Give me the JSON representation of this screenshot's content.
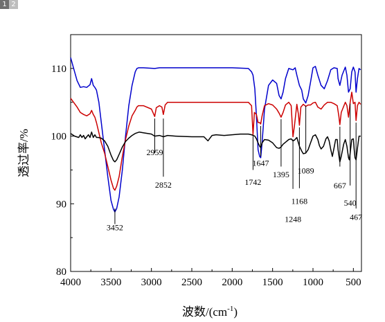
{
  "tabs": [
    {
      "label": "1",
      "active": true
    },
    {
      "label": "2",
      "active": false
    }
  ],
  "chart_data": {
    "type": "line",
    "xlabel": "波数/(cm-1)",
    "xlabel_parts": {
      "base": "波数/(cm",
      "sup": "-1",
      "close": ")"
    },
    "ylabel": "透过率/%",
    "xlim": [
      4000,
      400
    ],
    "ylim": [
      80,
      115
    ],
    "x_ticks": [
      4000,
      3500,
      3000,
      2500,
      2000,
      1500,
      1000,
      500
    ],
    "x_tick_labels": [
      "4000",
      "3500",
      "3000",
      "2500",
      "2000",
      "1500",
      "1000",
      "500"
    ],
    "y_ticks": [
      80,
      90,
      100,
      110
    ],
    "y_tick_labels": [
      "80",
      "90",
      "100",
      "110"
    ],
    "grid": false,
    "legend": false,
    "series": [
      {
        "color": "#0000cc",
        "x": [
          4000,
          3920,
          3880,
          3840,
          3800,
          3760,
          3740,
          3720,
          3700,
          3680,
          3650,
          3620,
          3580,
          3540,
          3500,
          3470,
          3452,
          3430,
          3400,
          3360,
          3320,
          3280,
          3240,
          3200,
          3180,
          3160,
          3100,
          2959,
          2900,
          2852,
          2800,
          2500,
          2000,
          1800,
          1760,
          1742,
          1720,
          1700,
          1680,
          1660,
          1647,
          1630,
          1600,
          1550,
          1500,
          1450,
          1420,
          1395,
          1370,
          1340,
          1300,
          1248,
          1220,
          1200,
          1168,
          1140,
          1120,
          1089,
          1060,
          1030,
          1000,
          970,
          940,
          900,
          860,
          820,
          780,
          740,
          700,
          690,
          667,
          640,
          600,
          580,
          560,
          540,
          520,
          500,
          480,
          467,
          450,
          430,
          410
        ],
        "y": [
          111.6,
          108.2,
          107.2,
          107.3,
          107.2,
          107.6,
          108.5,
          107.5,
          107.2,
          106.8,
          105.0,
          102.0,
          98.0,
          94.0,
          90.5,
          89.2,
          88.8,
          89.3,
          91.0,
          95.0,
          100.0,
          104.5,
          107.5,
          109.5,
          110.0,
          110.1,
          110.1,
          110.0,
          110.1,
          110.1,
          110.1,
          110.1,
          110.1,
          110.0,
          109.5,
          109.0,
          107.0,
          103.0,
          98.0,
          97.0,
          96.8,
          99.0,
          104.0,
          107.5,
          108.3,
          107.8,
          106.0,
          105.5,
          106.5,
          108.5,
          110.0,
          109.8,
          110.1,
          109.0,
          107.5,
          106.8,
          105.5,
          104.9,
          106.0,
          108.0,
          110.1,
          110.3,
          109.0,
          107.5,
          107.0,
          108.2,
          109.8,
          110.1,
          110.0,
          108.5,
          107.5,
          109.0,
          110.2,
          109.0,
          106.5,
          107.0,
          109.5,
          110.2,
          109.5,
          106.5,
          108.5,
          110.0,
          109.8
        ]
      },
      {
        "color": "#cc0000",
        "x": [
          4000,
          3920,
          3880,
          3840,
          3800,
          3760,
          3740,
          3720,
          3700,
          3680,
          3650,
          3620,
          3580,
          3540,
          3500,
          3470,
          3452,
          3430,
          3400,
          3360,
          3320,
          3280,
          3240,
          3200,
          3180,
          3160,
          3100,
          3000,
          2959,
          2940,
          2900,
          2870,
          2852,
          2830,
          2800,
          2500,
          2000,
          1800,
          1760,
          1742,
          1725,
          1700,
          1680,
          1660,
          1647,
          1630,
          1600,
          1550,
          1500,
          1450,
          1420,
          1395,
          1370,
          1340,
          1300,
          1270,
          1248,
          1230,
          1200,
          1180,
          1168,
          1150,
          1120,
          1089,
          1060,
          1030,
          1000,
          970,
          940,
          900,
          860,
          820,
          780,
          740,
          700,
          680,
          667,
          650,
          600,
          580,
          560,
          540,
          520,
          500,
          480,
          467,
          450,
          430,
          410
        ],
        "y": [
          105.6,
          104.3,
          103.5,
          103.2,
          103.0,
          103.3,
          103.8,
          103.2,
          102.8,
          102.0,
          100.5,
          99.0,
          97.5,
          95.5,
          93.5,
          92.3,
          92.0,
          92.6,
          94.0,
          97.0,
          99.5,
          101.5,
          103.0,
          103.8,
          104.3,
          104.5,
          104.5,
          104.0,
          102.9,
          104.2,
          104.5,
          104.3,
          103.2,
          104.6,
          105.0,
          105.0,
          105.0,
          105.0,
          104.5,
          100.2,
          103.5,
          103.2,
          102.0,
          102.0,
          101.8,
          103.0,
          104.5,
          104.8,
          104.6,
          104.0,
          103.4,
          102.8,
          103.5,
          104.6,
          105.0,
          104.5,
          99.9,
          101.5,
          104.7,
          103.2,
          101.6,
          104.3,
          104.7,
          104.4,
          104.6,
          104.6,
          104.9,
          105.0,
          104.3,
          104.0,
          104.6,
          105.0,
          105.0,
          104.8,
          104.5,
          103.0,
          101.7,
          103.5,
          105.0,
          104.5,
          102.8,
          105.0,
          106.5,
          104.8,
          105.0,
          102.3,
          104.5,
          105.0,
          104.7
        ]
      },
      {
        "color": "#000000",
        "x": [
          4000,
          3950,
          3900,
          3880,
          3860,
          3840,
          3820,
          3800,
          3780,
          3760,
          3740,
          3720,
          3700,
          3680,
          3660,
          3620,
          3580,
          3540,
          3500,
          3470,
          3452,
          3430,
          3400,
          3360,
          3320,
          3280,
          3240,
          3200,
          3150,
          3100,
          3000,
          2959,
          2900,
          2852,
          2800,
          2700,
          2500,
          2350,
          2300,
          2250,
          2200,
          2100,
          2000,
          1900,
          1800,
          1760,
          1742,
          1720,
          1700,
          1680,
          1660,
          1647,
          1630,
          1600,
          1550,
          1500,
          1450,
          1420,
          1395,
          1370,
          1340,
          1300,
          1270,
          1248,
          1230,
          1200,
          1168,
          1140,
          1120,
          1089,
          1060,
          1030,
          1000,
          970,
          940,
          920,
          900,
          870,
          840,
          820,
          800,
          780,
          760,
          740,
          720,
          700,
          690,
          680,
          667,
          650,
          620,
          600,
          580,
          560,
          550,
          540,
          520,
          500,
          490,
          480,
          467,
          450,
          430,
          410
        ],
        "y": [
          100.4,
          100.0,
          99.8,
          100.2,
          99.8,
          100.1,
          99.6,
          99.9,
          100.2,
          99.8,
          100.6,
          99.8,
          100.2,
          99.8,
          99.8,
          99.7,
          99.3,
          98.5,
          97.2,
          96.4,
          96.2,
          96.5,
          97.3,
          98.4,
          99.2,
          99.7,
          100.1,
          100.4,
          100.6,
          100.5,
          100.3,
          100.0,
          100.1,
          99.9,
          100.1,
          100.0,
          99.9,
          99.9,
          99.3,
          100.1,
          100.2,
          100.1,
          100.2,
          100.3,
          100.3,
          100.2,
          100.1,
          100.0,
          99.6,
          99.0,
          98.5,
          98.3,
          99.0,
          99.5,
          99.4,
          99.0,
          98.3,
          98.2,
          98.4,
          98.8,
          99.1,
          99.5,
          99.6,
          99.3,
          99.4,
          99.8,
          98.5,
          97.8,
          97.4,
          97.5,
          98.0,
          99.0,
          100.0,
          100.2,
          99.5,
          98.6,
          98.1,
          98.5,
          99.6,
          99.9,
          99.3,
          98.0,
          97.0,
          98.2,
          99.5,
          99.5,
          98.0,
          97.2,
          96.2,
          97.0,
          98.8,
          99.5,
          98.5,
          96.8,
          96.5,
          97.5,
          99.5,
          99.6,
          98.0,
          96.8,
          96.5,
          98.2,
          100.0,
          100.0
        ]
      }
    ],
    "annotations": [
      {
        "label": "3452",
        "wn": 3452,
        "mark": [
          89.3,
          87.0
        ],
        "text_y": 86.1
      },
      {
        "label": "2959",
        "wn": 2959,
        "mark": [
          102.6,
          97.5
        ],
        "text_y": 97.2
      },
      {
        "label": "2852",
        "wn": 2852,
        "mark": [
          102.6,
          94.0
        ],
        "text_y": 92.4
      },
      {
        "label": "1742",
        "wn": 1742,
        "mark": [
          100.0,
          95.0
        ],
        "text_y": 92.8
      },
      {
        "label": "1647",
        "wn": 1647,
        "mark": [
          101.5,
          97.0
        ],
        "text_y": 95.6
      },
      {
        "label": "1395",
        "wn": 1395,
        "mark": [
          102.5,
          95.5
        ],
        "text_y": 93.9
      },
      {
        "label": "1089",
        "wn": 1089,
        "mark": [
          104.5,
          97.5
        ],
        "text_y": 94.5
      },
      {
        "label": "1248",
        "wn": 1248,
        "mark": [
          99.5,
          92.2
        ],
        "text_y": 87.3
      },
      {
        "label": "1168",
        "wn": 1168,
        "mark": [
          101.3,
          92.3
        ],
        "text_y": 90.0
      },
      {
        "label": "667",
        "wn": 667,
        "mark": [
          101.4,
          95.5
        ],
        "text_y": 92.3
      },
      {
        "label": "540",
        "wn": 540,
        "mark": [
          104.8,
          92.7
        ],
        "text_y": 89.7
      },
      {
        "label": "467",
        "wn": 467,
        "mark": [
          102.0,
          89.3
        ],
        "text_y": 87.6
      }
    ]
  }
}
